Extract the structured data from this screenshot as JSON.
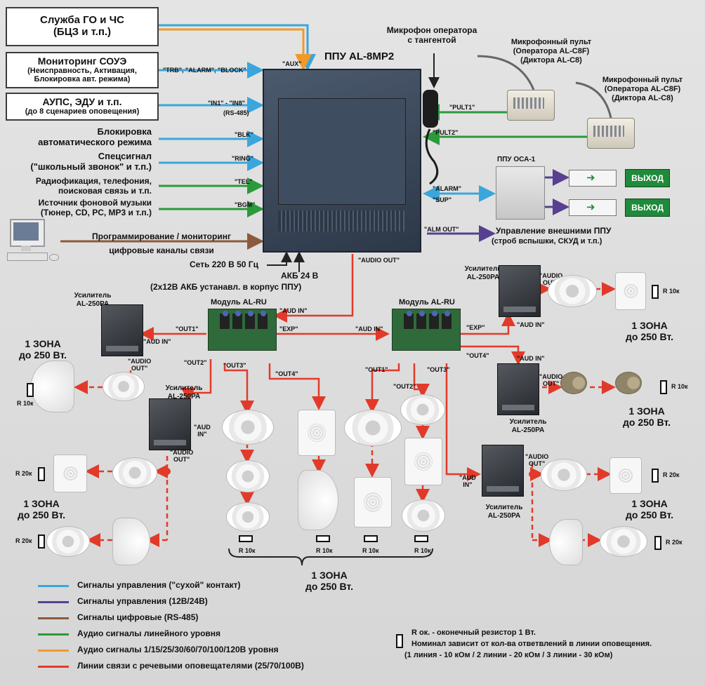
{
  "colors": {
    "control_dry": "#3aa6dc",
    "control_12_24": "#56408f",
    "digital": "#8b5a3c",
    "audio_line": "#2a9a3a",
    "audio_speaker_level": "#f09a2a",
    "speaker_lines": "#e23a2a"
  },
  "sources": {
    "go_chs": {
      "line1": "Служба ГО и ЧС",
      "line2": "(БЦЗ и т.п.)"
    },
    "soue": {
      "line1": "Мониторинг СОУЭ",
      "line2": "(Неисправность, Активация,",
      "line3": "Блокировка авт. режима)"
    },
    "aups": {
      "line1": "АУПС, ЭДУ и т.п.",
      "line2": "(до 8 сценариев оповещения)"
    },
    "blk": {
      "line1": "Блокировка",
      "line2": "автоматического режима"
    },
    "ring": {
      "line1": "Спецсигнал",
      "line2": "(\"школьный звонок\" и т.п.)"
    },
    "tel": {
      "line1": "Радиофикация, телефония,",
      "line2": "поисковая связь и т.п."
    },
    "bgm": {
      "line1": "Источник фоновой музыки",
      "line2": "(Тюнер, CD, PC, MP3 и т.п.)"
    },
    "prog": {
      "line1": "Программирование / мониторинг",
      "line2": "цифровые каналы связи"
    }
  },
  "signals": {
    "aux": "\"AUX\"",
    "trb": "\"TRB\", \"ALARM\", \"BLOCK\"",
    "in": "\"IN1\" - \"IN8\"",
    "rs485": "(RS-485)",
    "blk": "\"BLK\"",
    "ring": "\"RING\"",
    "tel": "\"TEL\"",
    "bgm": "\"BGM\"",
    "pult1": "\"PULT1\"",
    "pult2": "\"PULT2\"",
    "alarm": "\"ALARM\"",
    "sup": "\"SUP\"",
    "alm_out": "\"ALM OUT\"",
    "audio_out": "\"AUDIO OUT\"",
    "aud_in": "\"AUD IN\"",
    "exp": "\"EXP\"",
    "out1": "\"OUT1\"",
    "out2": "\"OUT2\"",
    "out3": "\"OUT3\"",
    "out4": "\"OUT4\"",
    "audio_out_small": "\"AUDIO\nOUT\"",
    "aud_in_small": "\"AUD\nIN\""
  },
  "ppu": {
    "title": "ППУ AL-8MP2",
    "mic_line1": "Микрофон оператора",
    "mic_line2": "с тангентой",
    "power": "Сеть 220 В 50 Гц",
    "battery_line1": "АКБ 24 В",
    "battery_line2": "(2х12В АКБ устанавл. в корпус ППУ)"
  },
  "consoles": [
    {
      "line1": "Микрофонный пульт",
      "line2": "(Оператора AL-C8F)",
      "line3": "(Диктора AL-C8)"
    },
    {
      "line1": "Микрофонный пульт",
      "line2": "(Оператора AL-C8F)",
      "line3": "(Диктора AL-C8)"
    }
  ],
  "osa": {
    "title": "ППУ ОСА-1",
    "exit1": "ВЫХОД",
    "exit2": "ВЫХОД",
    "ext_line1": "Управление внешними ППУ",
    "ext_line2": "(строб вспышки, СКУД и т.п.)"
  },
  "modules": {
    "left": "Модуль AL-RU",
    "right": "Модуль AL-RU"
  },
  "amplifier": {
    "line1": "Усилитель",
    "line2": "AL-250PA"
  },
  "zone": {
    "line1": "1 ЗОНА",
    "line2": "до 250 Вт."
  },
  "resistors": {
    "r10": "R 10к",
    "r20": "R 20к"
  },
  "legend": [
    {
      "key": "control_dry",
      "label": "Сигналы управления (\"сухой\" контакт)"
    },
    {
      "key": "control_12_24",
      "label": "Сигналы управления (12В/24В)"
    },
    {
      "key": "digital",
      "label": "Сигналы цифровые (RS-485)"
    },
    {
      "key": "audio_line",
      "label": "Аудио сигналы линейного уровня"
    },
    {
      "key": "audio_speaker_level",
      "label": "Аудио сигналы 1/15/25/30/60/70/100/120В уровня"
    },
    {
      "key": "speaker_lines",
      "label": "Линии связи с речевыми оповещателями (25/70/100В)"
    }
  ],
  "note": {
    "line1": "R ок. - оконечный резистор 1 Вт.",
    "line2": "Номинал зависит от кол-ва ответвлений в линии оповещения.",
    "line3": "(1 линия - 10 кОм / 2 линии - 20 кОм / 3 линии - 30 кОм)"
  }
}
